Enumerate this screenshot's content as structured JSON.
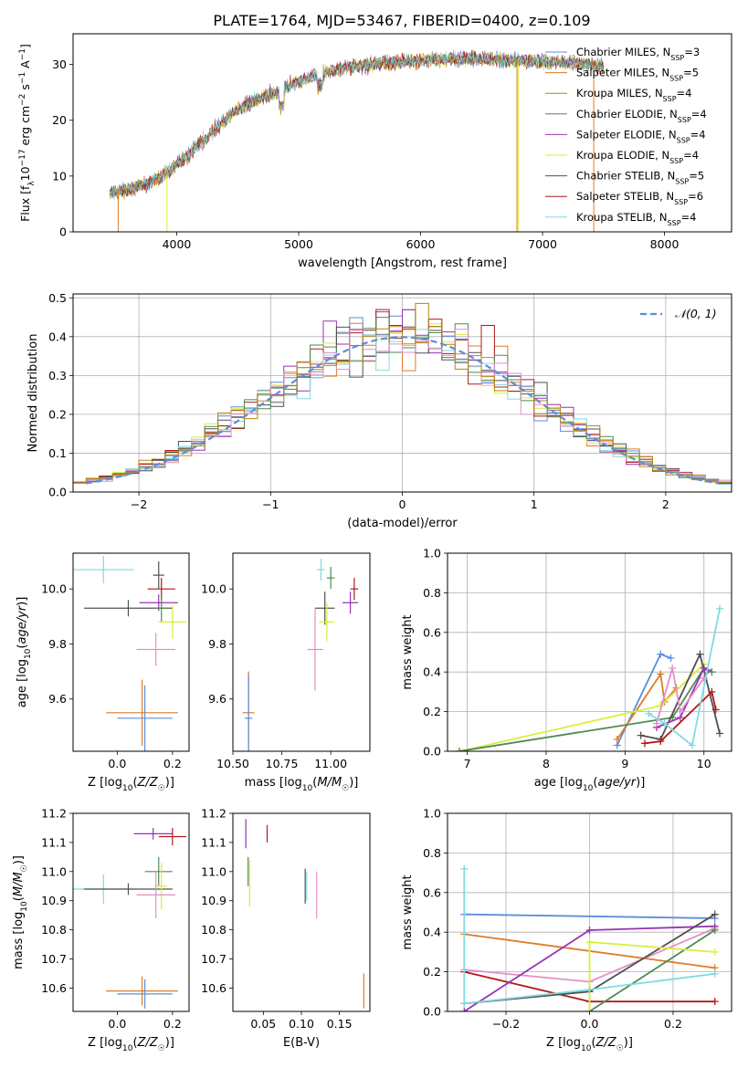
{
  "figure_title": "PLATE=1764, MJD=53467, FIBERID=0400, z=0.109",
  "colors": {
    "Chabrier MILES": "#5b8fd9",
    "Salpeter MILES": "#e07b27",
    "Kroupa MILES": "#b8860b",
    "Chabrier ELODIE": "#4e8a52",
    "Salpeter ELODIE": "#9a32b5",
    "Kroupa ELODIE": "#d9ee3a",
    "Chabrier STELIB": "#505050",
    "Salpeter STELIB": "#b01a1a",
    "Kroupa STELIB": "#7fdbe0",
    "pink": "#e58ec6",
    "normal_curve": "#5b8fd9"
  },
  "chart_data": [
    {
      "id": "spectrum",
      "type": "line",
      "xlabel": "wavelength [Angstrom, rest frame]",
      "ylabel": "Flux [fλ10⁻¹⁷ erg cm⁻² s⁻¹ A⁻¹]",
      "xlim": [
        3150,
        8550
      ],
      "ylim": [
        0,
        35.5
      ],
      "xticks": [
        4000,
        5000,
        6000,
        7000,
        8000
      ],
      "yticks": [
        0,
        10,
        20,
        30
      ],
      "legend_placement": "right",
      "continuum": [
        [
          3450,
          7
        ],
        [
          3600,
          7.5
        ],
        [
          3800,
          9
        ],
        [
          3950,
          11
        ],
        [
          4100,
          14
        ],
        [
          4300,
          18
        ],
        [
          4500,
          22
        ],
        [
          4800,
          25
        ],
        [
          5000,
          27
        ],
        [
          5200,
          28.5
        ],
        [
          5400,
          29.5
        ],
        [
          5600,
          30
        ],
        [
          5900,
          30.5
        ],
        [
          6200,
          31
        ],
        [
          6500,
          31
        ],
        [
          7000,
          30.5
        ],
        [
          7400,
          30
        ],
        [
          7500,
          29.5
        ]
      ],
      "series": [
        {
          "name": "Chabrier MILES, N_SSP=3",
          "label_main": "Chabrier MILES, N",
          "label_sub": "SSP",
          "label_end": "=3",
          "color": "#5b8fd9"
        },
        {
          "name": "Salpeter MILES, N_SSP=5",
          "label_main": "Salpeter MILES, N",
          "label_sub": "SSP",
          "label_end": "=5",
          "color": "#e07b27"
        },
        {
          "name": "Kroupa MILES, N_SSP=4",
          "label_main": "Kroupa MILES, N",
          "label_sub": "SSP",
          "label_end": "=4",
          "color": "#b8860b"
        },
        {
          "name": "Chabrier ELODIE, N_SSP=4",
          "label_main": "Chabrier ELODIE, N",
          "label_sub": "SSP",
          "label_end": "=4",
          "color": "#4e8a52"
        },
        {
          "name": "Salpeter ELODIE, N_SSP=4",
          "label_main": "Salpeter ELODIE, N",
          "label_sub": "SSP",
          "label_end": "=4",
          "color": "#9a32b5"
        },
        {
          "name": "Kroupa ELODIE, N_SSP=4",
          "label_main": "Kroupa ELODIE, N",
          "label_sub": "SSP",
          "label_end": "=4",
          "color": "#d9ee3a"
        },
        {
          "name": "Chabrier STELIB, N_SSP=5",
          "label_main": "Chabrier STELIB, N",
          "label_sub": "SSP",
          "label_end": "=5",
          "color": "#505050"
        },
        {
          "name": "Salpeter STELIB, N_SSP=6",
          "label_main": "Salpeter STELIB, N",
          "label_sub": "SSP",
          "label_end": "=6",
          "color": "#b01a1a"
        },
        {
          "name": "Kroupa STELIB, N_SSP=4",
          "label_main": "Kroupa STELIB, N",
          "label_sub": "SSP",
          "label_end": "=4",
          "color": "#7fdbe0"
        }
      ]
    },
    {
      "id": "residuals",
      "type": "histogram",
      "xlabel": "(data-model)/error",
      "ylabel": "Normed distribution",
      "xlim": [
        -2.5,
        2.5
      ],
      "ylim": [
        0,
        0.51
      ],
      "xticks": [
        -2,
        -1,
        0,
        1,
        2
      ],
      "yticks": [
        0.0,
        0.1,
        0.2,
        0.3,
        0.4,
        0.5
      ],
      "grid": true,
      "legend_label": "𝒩(0, 1)",
      "legend_placement": "top-right",
      "bin_range": [
        -2.5,
        2.5
      ],
      "bin_count": 50,
      "overall_shape": "normal(0,1) with noise, peaks near 0.48"
    },
    {
      "id": "age-vs-Z",
      "type": "scatter",
      "xlabel": "Z [log10(Z/Z☉)]",
      "ylabel": "age  [log10(age/yr)]",
      "xlim": [
        -0.16,
        0.26
      ],
      "ylim": [
        9.41,
        10.13
      ],
      "xticks": [
        0.0,
        0.2
      ],
      "yticks": [
        9.6,
        9.8,
        10.0
      ],
      "points": [
        {
          "x": -0.05,
          "y": 10.07,
          "xerr": 0.11,
          "yerr": 0.05,
          "color": "#7fdbe0"
        },
        {
          "x": 0.04,
          "y": 9.93,
          "xerr": 0.16,
          "yerr": 0.03,
          "color": "#505050"
        },
        {
          "x": 0.15,
          "y": 9.95,
          "xerr": 0.07,
          "yerr": 0.03,
          "color": "#9a32b5"
        },
        {
          "x": 0.16,
          "y": 10.0,
          "xerr": 0.05,
          "yerr": 0.04,
          "color": "#b01a1a"
        },
        {
          "x": 0.15,
          "y": 10.05,
          "xerr": 0.02,
          "yerr": 0.05,
          "color": "#505050"
        },
        {
          "x": 0.16,
          "y": 9.93,
          "xerr": 0.03,
          "yerr": 0.05,
          "color": "#4e8a52"
        },
        {
          "x": 0.2,
          "y": 9.88,
          "xerr": 0.05,
          "yerr": 0.06,
          "color": "#d9ee3a"
        },
        {
          "x": 0.14,
          "y": 9.78,
          "xerr": 0.07,
          "yerr": 0.06,
          "color": "#e58ec6"
        },
        {
          "x": 0.09,
          "y": 9.55,
          "xerr": 0.13,
          "yerr": 0.12,
          "color": "#e07b27"
        },
        {
          "x": 0.1,
          "y": 9.53,
          "xerr": 0.1,
          "yerr": 0.12,
          "color": "#5b8fd9"
        }
      ]
    },
    {
      "id": "age-vs-mass",
      "type": "scatter",
      "xlabel": "mass [log10(M/M☉)]",
      "ylabel": "",
      "xlim": [
        10.5,
        11.2
      ],
      "ylim": [
        9.41,
        10.13
      ],
      "xticks": [
        10.5,
        10.75,
        11.0
      ],
      "yticks": [
        9.6,
        9.8,
        10.0
      ],
      "points": [
        {
          "x": 10.95,
          "y": 10.07,
          "xerr": 0.02,
          "yerr": 0.04,
          "color": "#7fdbe0"
        },
        {
          "x": 11.0,
          "y": 10.04,
          "xerr": 0.02,
          "yerr": 0.04,
          "color": "#4e8a52"
        },
        {
          "x": 10.97,
          "y": 9.93,
          "xerr": 0.05,
          "yerr": 0.06,
          "color": "#505050"
        },
        {
          "x": 11.12,
          "y": 10.0,
          "xerr": 0.02,
          "yerr": 0.04,
          "color": "#b01a1a"
        },
        {
          "x": 11.1,
          "y": 9.95,
          "xerr": 0.04,
          "yerr": 0.04,
          "color": "#9a32b5"
        },
        {
          "x": 10.98,
          "y": 9.88,
          "xerr": 0.04,
          "yerr": 0.07,
          "color": "#d9ee3a"
        },
        {
          "x": 10.92,
          "y": 9.78,
          "xerr": 0.04,
          "yerr": 0.15,
          "color": "#e58ec6"
        },
        {
          "x": 10.58,
          "y": 9.55,
          "xerr": 0.03,
          "yerr": 0.15,
          "color": "#e07b27"
        },
        {
          "x": 10.58,
          "y": 9.53,
          "xerr": 0.02,
          "yerr": 0.16,
          "color": "#5b8fd9"
        }
      ]
    },
    {
      "id": "weight-vs-age",
      "type": "line",
      "xlabel": "age  [log10(age/yr)]",
      "ylabel": "mass weight",
      "xlim": [
        6.75,
        10.35
      ],
      "ylim": [
        0,
        1
      ],
      "xticks": [
        7,
        8,
        9,
        10
      ],
      "yticks": [
        0.0,
        0.2,
        0.4,
        0.6,
        0.8,
        1.0
      ],
      "grid": true,
      "series": [
        {
          "color": "#5b8fd9",
          "points": [
            [
              8.9,
              0.03
            ],
            [
              9.45,
              0.49
            ],
            [
              9.58,
              0.47
            ]
          ]
        },
        {
          "color": "#e07b27",
          "points": [
            [
              8.9,
              0.06
            ],
            [
              9.45,
              0.39
            ],
            [
              9.5,
              0.25
            ],
            [
              9.65,
              0.32
            ]
          ]
        },
        {
          "color": "#d9ee3a",
          "points": [
            [
              6.9,
              0.0
            ],
            [
              9.45,
              0.23
            ],
            [
              10.0,
              0.44
            ]
          ]
        },
        {
          "color": "#4e8a52",
          "points": [
            [
              6.9,
              0.0
            ],
            [
              9.6,
              0.17
            ],
            [
              10.0,
              0.42
            ],
            [
              10.1,
              0.4
            ]
          ]
        },
        {
          "color": "#505050",
          "points": [
            [
              9.2,
              0.08
            ],
            [
              9.45,
              0.06
            ],
            [
              9.95,
              0.49
            ],
            [
              10.2,
              0.09
            ]
          ]
        },
        {
          "color": "#b01a1a",
          "points": [
            [
              9.25,
              0.04
            ],
            [
              9.45,
              0.05
            ],
            [
              10.1,
              0.3
            ],
            [
              10.15,
              0.21
            ]
          ]
        },
        {
          "color": "#9a32b5",
          "points": [
            [
              9.4,
              0.12
            ],
            [
              9.7,
              0.17
            ],
            [
              10.0,
              0.42
            ],
            [
              10.05,
              0.41
            ]
          ]
        },
        {
          "color": "#e58ec6",
          "points": [
            [
              9.4,
              0.14
            ],
            [
              9.6,
              0.42
            ],
            [
              9.7,
              0.2
            ],
            [
              10.0,
              0.37
            ]
          ]
        },
        {
          "color": "#7fdbe0",
          "points": [
            [
              9.3,
              0.19
            ],
            [
              9.5,
              0.14
            ],
            [
              9.85,
              0.03
            ],
            [
              10.2,
              0.72
            ]
          ]
        }
      ]
    },
    {
      "id": "mass-vs-Z",
      "type": "scatter",
      "xlabel": "Z [log10(Z/Z☉)]",
      "ylabel": "mass [log10(M/M☉)]",
      "xlim": [
        -0.16,
        0.26
      ],
      "ylim": [
        10.52,
        11.2
      ],
      "xticks": [
        0.0,
        0.2
      ],
      "yticks": [
        10.6,
        10.7,
        10.8,
        10.9,
        11.0,
        11.1,
        11.2
      ],
      "points": [
        {
          "x": 0.13,
          "y": 11.13,
          "xerr": 0.07,
          "yerr": 0.02,
          "color": "#9a32b5"
        },
        {
          "x": 0.2,
          "y": 11.12,
          "xerr": 0.05,
          "yerr": 0.03,
          "color": "#b01a1a"
        },
        {
          "x": -0.05,
          "y": 10.94,
          "xerr": 0.11,
          "yerr": 0.05,
          "color": "#7fdbe0"
        },
        {
          "x": 0.04,
          "y": 10.94,
          "xerr": 0.16,
          "yerr": 0.02,
          "color": "#505050"
        },
        {
          "x": 0.15,
          "y": 11.0,
          "xerr": 0.05,
          "yerr": 0.05,
          "color": "#4e8a52"
        },
        {
          "x": 0.16,
          "y": 10.95,
          "xerr": 0.02,
          "yerr": 0.08,
          "color": "#d9ee3a"
        },
        {
          "x": 0.14,
          "y": 10.92,
          "xerr": 0.07,
          "yerr": 0.08,
          "color": "#e58ec6"
        },
        {
          "x": 0.09,
          "y": 10.59,
          "xerr": 0.13,
          "yerr": 0.05,
          "color": "#e07b27"
        },
        {
          "x": 0.1,
          "y": 10.58,
          "xerr": 0.1,
          "yerr": 0.05,
          "color": "#5b8fd9"
        }
      ]
    },
    {
      "id": "mass-vs-EBV",
      "type": "scatter",
      "xlabel": "E(B-V)",
      "ylabel": "",
      "xlim": [
        0.01,
        0.19
      ],
      "ylim": [
        10.52,
        11.2
      ],
      "xticks": [
        0.05,
        0.1,
        0.15
      ],
      "yticks": [
        10.6,
        10.7,
        10.8,
        10.9,
        11.0,
        11.1,
        11.2
      ],
      "points": [
        {
          "x": 0.027,
          "y": 11.13,
          "yerr": 0.05,
          "color": "#9a32b5"
        },
        {
          "x": 0.055,
          "y": 11.13,
          "yerr": 0.03,
          "color": "#b01a1a"
        },
        {
          "x": 0.03,
          "y": 11.0,
          "yerr": 0.05,
          "color": "#4e8a52"
        },
        {
          "x": 0.032,
          "y": 10.96,
          "yerr": 0.08,
          "color": "#d9ee3a"
        },
        {
          "x": 0.105,
          "y": 10.95,
          "yerr": 0.06,
          "color": "#505050"
        },
        {
          "x": 0.107,
          "y": 10.95,
          "yerr": 0.05,
          "color": "#7fdbe0"
        },
        {
          "x": 0.12,
          "y": 10.92,
          "yerr": 0.08,
          "color": "#e58ec6"
        },
        {
          "x": 0.182,
          "y": 10.59,
          "yerr": 0.06,
          "color": "#e07b27"
        }
      ]
    },
    {
      "id": "weight-vs-Z",
      "type": "line",
      "xlabel": "Z [log10(Z/Z☉)]",
      "ylabel": "mass weight",
      "xlim": [
        -0.34,
        0.34
      ],
      "ylim": [
        0,
        1
      ],
      "xticks": [
        -0.2,
        0.0,
        0.2
      ],
      "yticks": [
        0.0,
        0.2,
        0.4,
        0.6,
        0.8,
        1.0
      ],
      "grid": true,
      "series": [
        {
          "color": "#5b8fd9",
          "points": [
            [
              -0.3,
              0.49
            ],
            [
              0.3,
              0.47
            ]
          ]
        },
        {
          "color": "#e07b27",
          "points": [
            [
              -0.3,
              0.39
            ],
            [
              0.3,
              0.22
            ]
          ]
        },
        {
          "color": "#e58ec6",
          "points": [
            [
              -0.3,
              0.21
            ],
            [
              0.0,
              0.15
            ],
            [
              0.3,
              0.42
            ]
          ]
        },
        {
          "color": "#b01a1a",
          "points": [
            [
              -0.3,
              0.2
            ],
            [
              0.0,
              0.05
            ],
            [
              0.3,
              0.05
            ]
          ]
        },
        {
          "color": "#9a32b5",
          "points": [
            [
              -0.3,
              0.0
            ],
            [
              0.0,
              0.41
            ],
            [
              0.3,
              0.43
            ]
          ]
        },
        {
          "color": "#505050",
          "points": [
            [
              -0.3,
              0.04
            ],
            [
              0.0,
              0.1
            ],
            [
              0.3,
              0.49
            ]
          ]
        },
        {
          "color": "#4e8a52",
          "points": [
            [
              0.0,
              0.0
            ],
            [
              0.3,
              0.41
            ]
          ]
        },
        {
          "color": "#d9ee3a",
          "points": [
            [
              0.0,
              0.0
            ],
            [
              0.0,
              0.35
            ],
            [
              0.3,
              0.3
            ]
          ]
        },
        {
          "color": "#7fdbe0",
          "points": [
            [
              -0.3,
              0.72
            ],
            [
              -0.3,
              0.04
            ],
            [
              0.0,
              0.11
            ],
            [
              0.3,
              0.19
            ]
          ]
        }
      ]
    }
  ]
}
